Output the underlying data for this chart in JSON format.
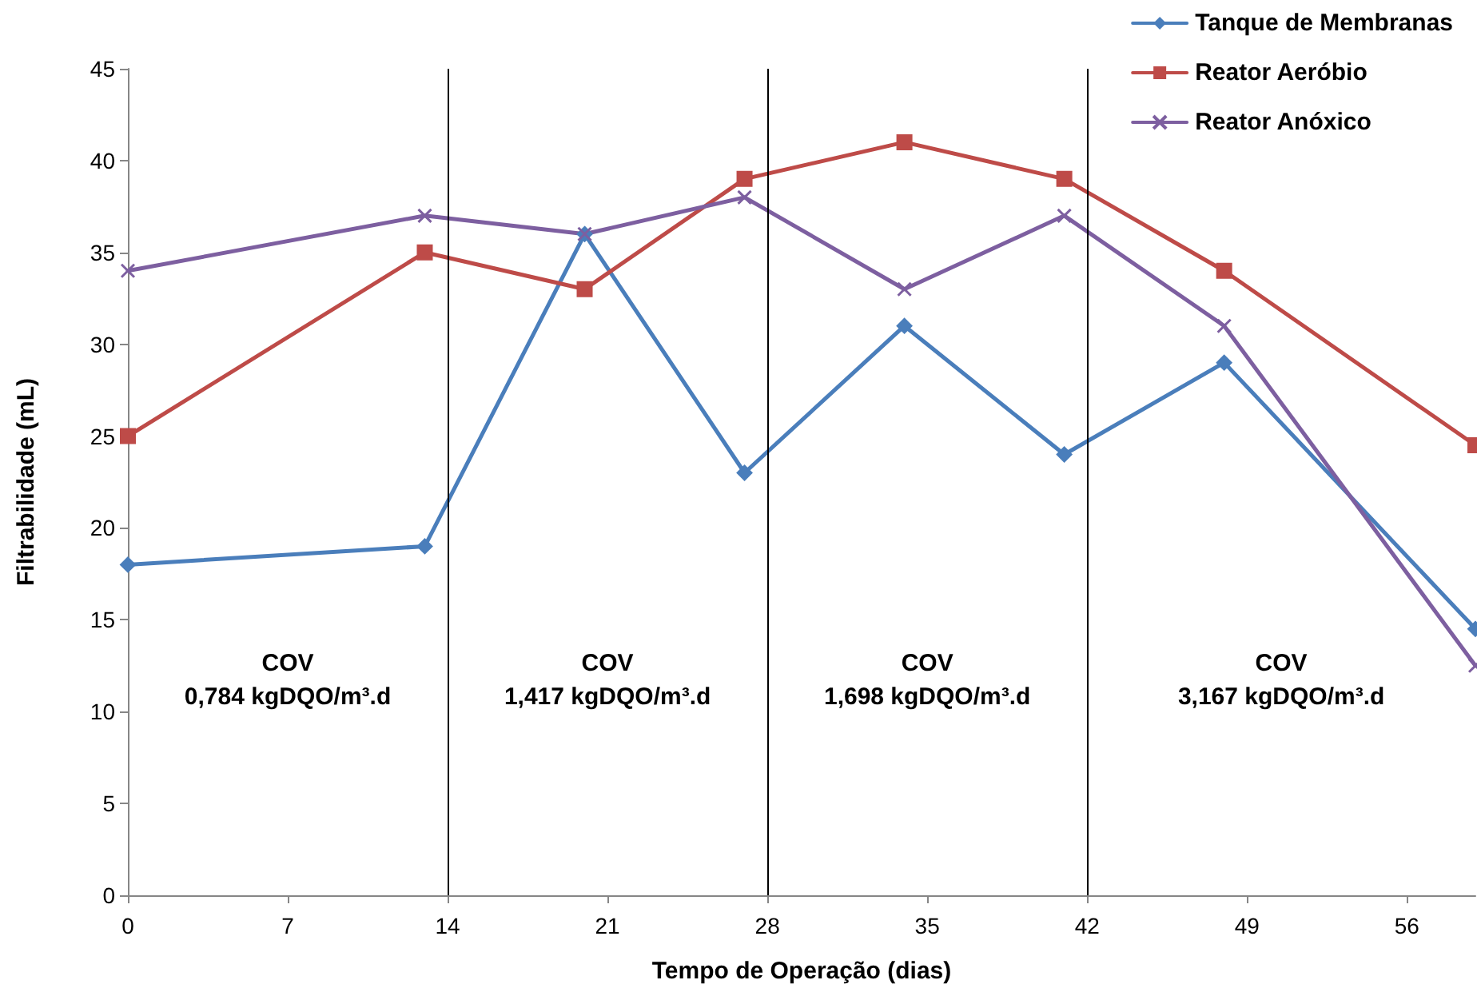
{
  "chart_data": {
    "type": "line",
    "xlabel": "Tempo de Operação (dias)",
    "ylabel": "Filtrabilidade (mL)",
    "xlim": [
      0,
      59
    ],
    "xticks": [
      0,
      7,
      14,
      21,
      28,
      35,
      42,
      49,
      56
    ],
    "ylim": [
      0,
      45
    ],
    "yticks": [
      0,
      5,
      10,
      15,
      20,
      25,
      30,
      35,
      40,
      45
    ],
    "grid": false,
    "legend": "top right",
    "series": [
      {
        "name": "Tanque de Membranas",
        "color": "#4a7ebb",
        "marker": "diamond",
        "x": [
          0,
          13,
          20,
          27,
          34,
          41,
          48,
          59
        ],
        "values": [
          18,
          19,
          36,
          23,
          31,
          24,
          29,
          14.5
        ]
      },
      {
        "name": "Reator Aeróbio",
        "color": "#be4b48",
        "marker": "square",
        "x": [
          0,
          13,
          20,
          27,
          34,
          41,
          48,
          59
        ],
        "values": [
          25,
          35,
          33,
          39,
          41,
          39,
          34,
          24.5
        ]
      },
      {
        "name": "Reator Anóxico",
        "color": "#7d5fa0",
        "marker": "cross",
        "x": [
          0,
          13,
          20,
          27,
          34,
          41,
          48,
          59
        ],
        "values": [
          34,
          37,
          36,
          38,
          33,
          37,
          31,
          12.5
        ]
      }
    ],
    "ref_lines": [
      {
        "axis": "x",
        "value": 14,
        "color": "#000000"
      },
      {
        "axis": "x",
        "value": 28,
        "color": "#000000"
      },
      {
        "axis": "x",
        "value": 42,
        "color": "#000000"
      }
    ],
    "annotations": [
      "COV\n0,784 kgDQO/m³.d",
      "COV\n1,417 kgDQO/m³.d",
      "COV\n1,698 kgDQO/m³.d",
      "COV\n3,167 kgDQO/m³.d"
    ]
  }
}
